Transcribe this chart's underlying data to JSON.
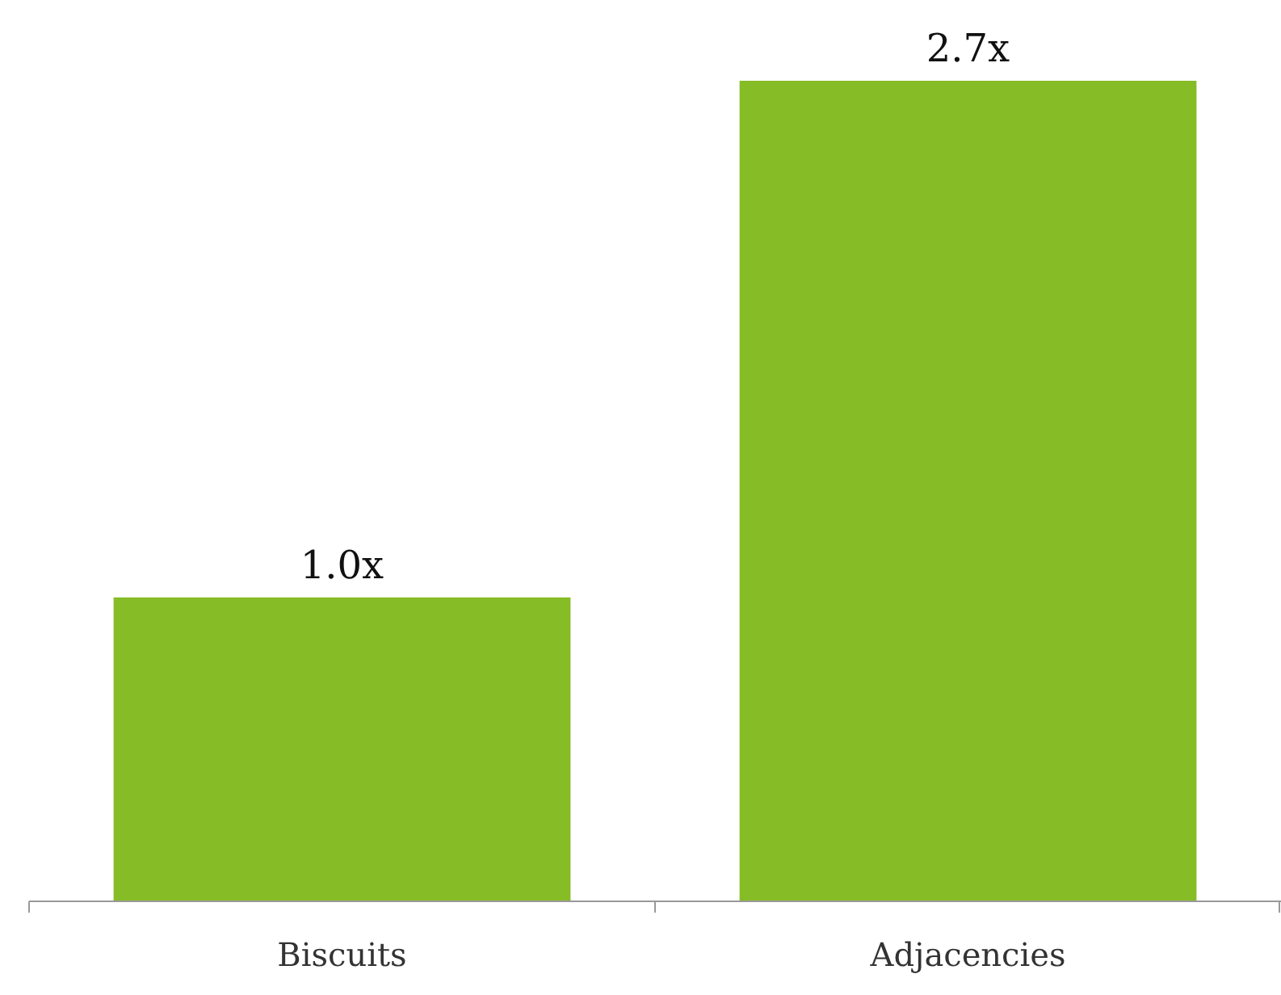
{
  "chart_data": {
    "type": "bar",
    "categories": [
      "Biscuits",
      "Adjacencies"
    ],
    "values": [
      1.0,
      2.7
    ],
    "value_labels": [
      "1.0x",
      "2.7x"
    ],
    "color": "#86bc25"
  }
}
